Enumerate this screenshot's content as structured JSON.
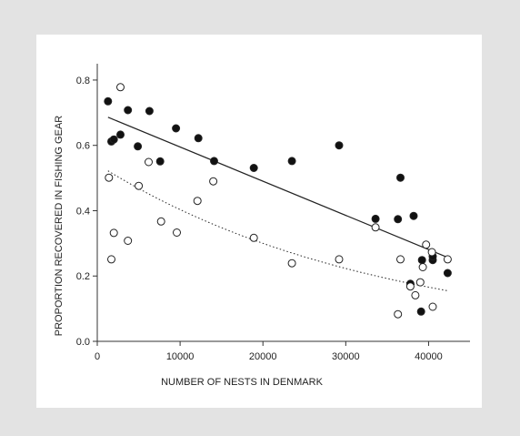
{
  "chart_data": {
    "type": "scatter",
    "title": "",
    "xlabel": "NUMBER OF NESTS IN DENMARK",
    "ylabel": "PROPORTION RECOVERED IN FISHING GEAR",
    "xlim": [
      0,
      45000
    ],
    "ylim": [
      0,
      0.85
    ],
    "xticks": [
      0,
      10000,
      20000,
      30000,
      40000
    ],
    "xtick_labels": [
      "0",
      "10000",
      "20000",
      "30000",
      "40000"
    ],
    "yticks": [
      0.0,
      0.2,
      0.4,
      0.6,
      0.8
    ],
    "ytick_labels": [
      "0.0",
      "0.2",
      "0.4",
      "0.6",
      "0.8"
    ],
    "grid": false,
    "series": [
      {
        "marker": "filled-circle",
        "points": [
          [
            1300,
            0.735
          ],
          [
            1700,
            0.612
          ],
          [
            2000,
            0.618
          ],
          [
            2800,
            0.633
          ],
          [
            3700,
            0.708
          ],
          [
            4900,
            0.597
          ],
          [
            6300,
            0.705
          ],
          [
            7600,
            0.551
          ],
          [
            9500,
            0.652
          ],
          [
            12200,
            0.622
          ],
          [
            14100,
            0.552
          ],
          [
            18900,
            0.531
          ],
          [
            23500,
            0.552
          ],
          [
            29200,
            0.6
          ],
          [
            33600,
            0.375
          ],
          [
            36300,
            0.374
          ],
          [
            36600,
            0.501
          ],
          [
            37800,
            0.176
          ],
          [
            38200,
            0.384
          ],
          [
            39100,
            0.091
          ],
          [
            39200,
            0.249
          ],
          [
            40500,
            0.249
          ],
          [
            40500,
            0.26
          ],
          [
            42300,
            0.209
          ]
        ],
        "trend": {
          "style": "solid",
          "x": [
            1300,
            42300
          ],
          "y": [
            0.686,
            0.257
          ]
        }
      },
      {
        "marker": "open-circle",
        "points": [
          [
            1400,
            0.501
          ],
          [
            1700,
            0.251
          ],
          [
            2000,
            0.332
          ],
          [
            2800,
            0.778
          ],
          [
            3700,
            0.308
          ],
          [
            5000,
            0.476
          ],
          [
            6200,
            0.549
          ],
          [
            7700,
            0.367
          ],
          [
            9600,
            0.333
          ],
          [
            12100,
            0.43
          ],
          [
            14000,
            0.49
          ],
          [
            18900,
            0.317
          ],
          [
            23500,
            0.239
          ],
          [
            29200,
            0.251
          ],
          [
            33600,
            0.349
          ],
          [
            36300,
            0.083
          ],
          [
            36600,
            0.251
          ],
          [
            37800,
            0.168
          ],
          [
            38400,
            0.141
          ],
          [
            39000,
            0.181
          ],
          [
            39300,
            0.227
          ],
          [
            39700,
            0.296
          ],
          [
            40400,
            0.273
          ],
          [
            40500,
            0.106
          ],
          [
            42300,
            0.251
          ]
        ],
        "trend": {
          "style": "dotted",
          "x": [
            1300,
            42300
          ],
          "y": [
            0.522,
            0.155
          ]
        }
      }
    ]
  }
}
